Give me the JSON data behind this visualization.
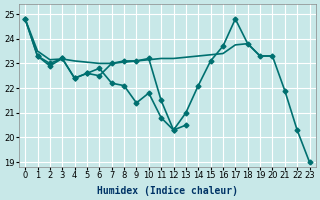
{
  "xlabel": "Humidex (Indice chaleur)",
  "ylabel": "",
  "xlim": [
    -0.5,
    23.5
  ],
  "ylim": [
    18.8,
    25.4
  ],
  "yticks": [
    19,
    20,
    21,
    22,
    23,
    24,
    25
  ],
  "xticks": [
    0,
    1,
    2,
    3,
    4,
    5,
    6,
    7,
    8,
    9,
    10,
    11,
    12,
    13,
    14,
    15,
    16,
    17,
    18,
    19,
    20,
    21,
    22,
    23
  ],
  "background_color": "#c8e8e8",
  "grid_color": "#ffffff",
  "line_color": "#007070",
  "series1_x": [
    0,
    1,
    2,
    3,
    4,
    5,
    6,
    7,
    8,
    9,
    10,
    11,
    12,
    13,
    14,
    15,
    16,
    17,
    18,
    19,
    20,
    21,
    22,
    23
  ],
  "series1_y": [
    24.8,
    23.3,
    22.9,
    23.2,
    22.4,
    22.6,
    22.5,
    23.0,
    23.1,
    23.1,
    23.2,
    21.5,
    20.3,
    21.0,
    22.1,
    23.1,
    23.7,
    24.8,
    23.8,
    23.3,
    23.3,
    21.9,
    20.3,
    19.0
  ],
  "series2_x": [
    0,
    1,
    2,
    3,
    4,
    5,
    6,
    7,
    8,
    9,
    10,
    11,
    12,
    13
  ],
  "series2_y": [
    24.8,
    23.3,
    23.0,
    23.2,
    22.4,
    22.6,
    22.8,
    22.2,
    22.1,
    21.4,
    21.8,
    20.8,
    20.3,
    20.5
  ],
  "series3_x": [
    0,
    1,
    2,
    3,
    4,
    5,
    6,
    7,
    8,
    9,
    10,
    11,
    12,
    13,
    14,
    15,
    16,
    17,
    18,
    19,
    20
  ],
  "series3_y": [
    24.8,
    23.5,
    23.15,
    23.18,
    23.1,
    23.05,
    23.0,
    23.0,
    23.05,
    23.1,
    23.15,
    23.2,
    23.2,
    23.25,
    23.3,
    23.35,
    23.4,
    23.75,
    23.8,
    23.3,
    23.3
  ]
}
